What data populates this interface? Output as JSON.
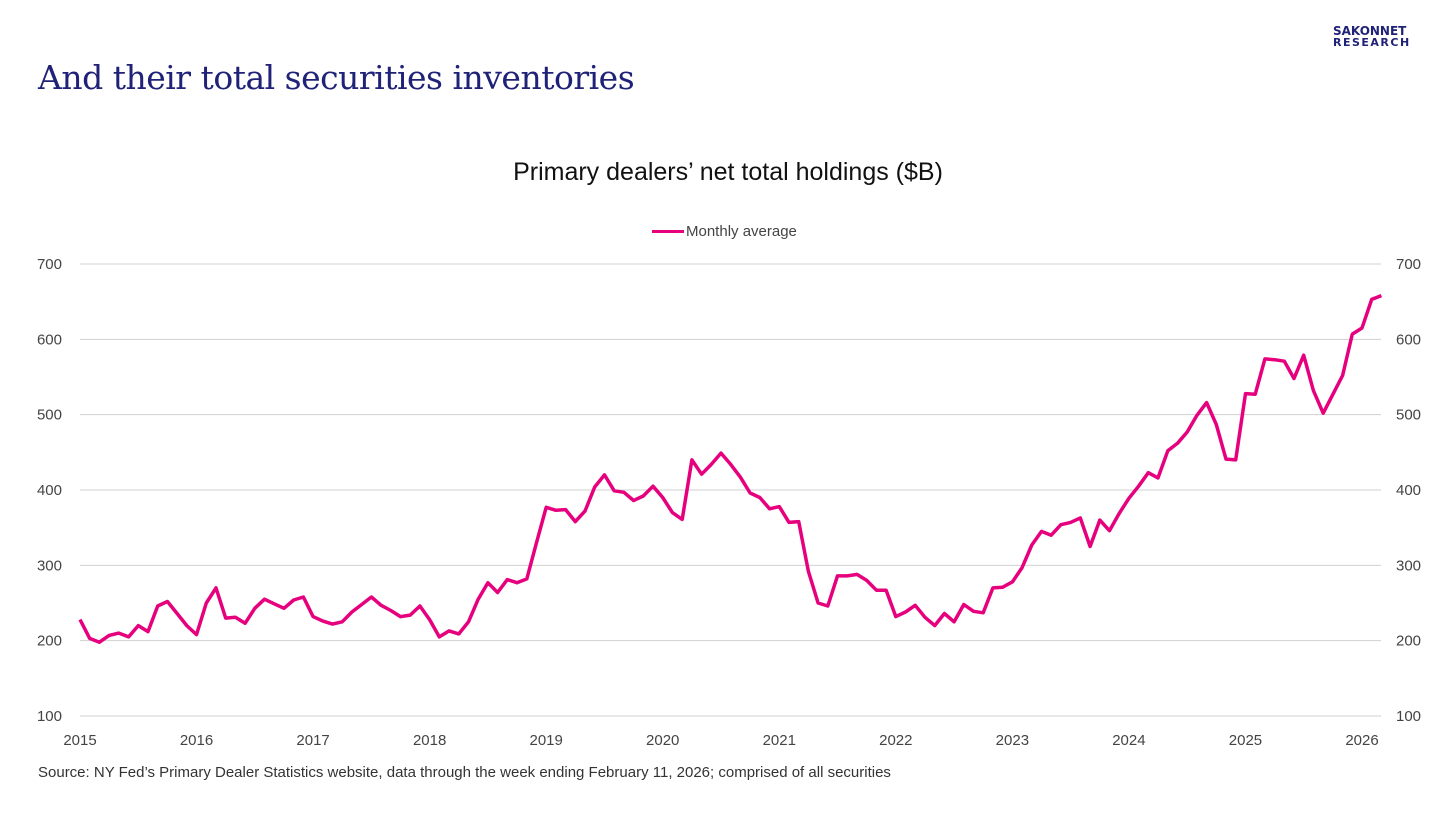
{
  "slide_title": "And their total securities inventories",
  "logo": {
    "line1": "SAKONNET",
    "line2": "RESEARCH"
  },
  "source": "Source: NY Fed’s Primary Dealer Statistics website, data through the week ending February 11, 2026; comprised of all securities",
  "colors": {
    "series": "#e6007e",
    "grid": "#d0d0d0",
    "title": "#1f2277"
  },
  "chart_data": {
    "type": "line",
    "title": "Primary dealers’ net total holdings ($B)",
    "xlabel": "",
    "ylabel": "",
    "ylim": [
      100,
      700
    ],
    "yticks": [
      "100",
      "200",
      "300",
      "400",
      "500",
      "600",
      "700"
    ],
    "xticks": [
      "2015",
      "2016",
      "2017",
      "2018",
      "2019",
      "2020",
      "2021",
      "2022",
      "2023",
      "2024",
      "2025",
      "2026"
    ],
    "x_start_year": 2015,
    "frequency": "monthly",
    "grid": true,
    "legend_position": "top-center",
    "series": [
      {
        "name": "Monthly average",
        "values": [
          228,
          203,
          198,
          207,
          210,
          205,
          220,
          212,
          246,
          252,
          236,
          220,
          208,
          250,
          270,
          230,
          231,
          223,
          243,
          255,
          249,
          243,
          254,
          258,
          232,
          226,
          222,
          225,
          238,
          248,
          258,
          247,
          240,
          232,
          234,
          246,
          228,
          205,
          213,
          209,
          225,
          255,
          277,
          264,
          281,
          277,
          282,
          330,
          377,
          373,
          374,
          358,
          372,
          404,
          420,
          399,
          397,
          386,
          392,
          405,
          390,
          370,
          361,
          440,
          421,
          434,
          449,
          434,
          417,
          396,
          390,
          375,
          378,
          357,
          358,
          292,
          250,
          246,
          286,
          286,
          288,
          280,
          267,
          267,
          232,
          238,
          247,
          231,
          220,
          236,
          225,
          248,
          239,
          237,
          270,
          271,
          278,
          297,
          327,
          345,
          340,
          354,
          357,
          363,
          325,
          360,
          346,
          369,
          389,
          405,
          423,
          416,
          452,
          462,
          477,
          499,
          516,
          487,
          441,
          440,
          528,
          527,
          574,
          573,
          571,
          548,
          579,
          532,
          502,
          527,
          552,
          607,
          615,
          653,
          658
        ]
      }
    ]
  }
}
